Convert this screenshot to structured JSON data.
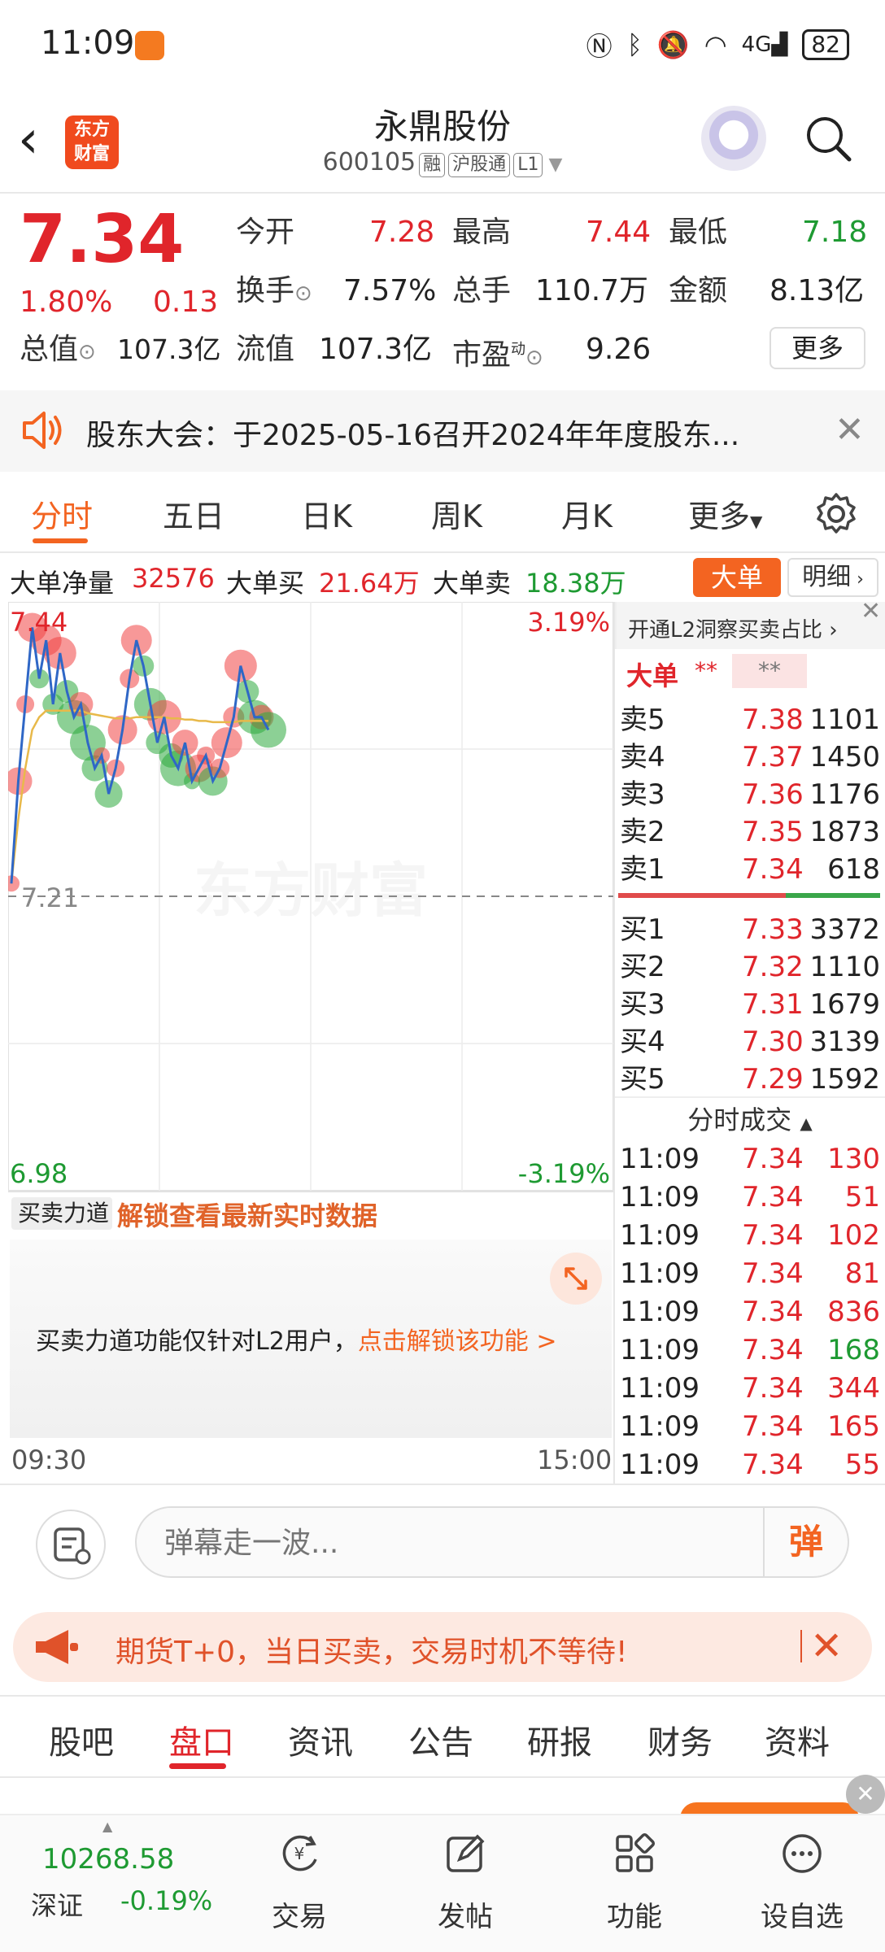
{
  "status_bar": {
    "time": "11:09",
    "signal": "4G",
    "battery": "82"
  },
  "header": {
    "back": "‹",
    "logo_line1": "东方",
    "logo_line2": "财富",
    "stock_name": "永鼎股份",
    "stock_code": "600105",
    "tags": [
      "融",
      "沪股通",
      "L1"
    ]
  },
  "quote": {
    "price": "7.34",
    "change_pct": "1.80%",
    "change": "0.13",
    "open_label": "今开",
    "open": "7.28",
    "high_label": "最高",
    "high": "7.44",
    "low_label": "最低",
    "low": "7.18",
    "turnover_label": "换手",
    "turnover": "7.57%",
    "volume_label": "总手",
    "volume": "110.7万",
    "amount_label": "金额",
    "amount": "8.13亿",
    "mktcap_label": "总值",
    "mktcap": "107.3亿",
    "float_label": "流值",
    "float": "107.3亿",
    "pe_label": "市盈",
    "pe_sup": "动",
    "pe": "9.26",
    "more": "更多"
  },
  "notice": {
    "text": "股东大会：于2025-05-16召开2024年年度股东..."
  },
  "chart_tabs": [
    "分时",
    "五日",
    "日K",
    "周K",
    "月K",
    "更多"
  ],
  "big_order": {
    "net_label": "大单净量",
    "net": "32576",
    "buy_label": "大单买",
    "buy": "21.64万",
    "sell_label": "大单卖",
    "sell": "18.38万",
    "btn_big": "大单",
    "btn_detail": "明细"
  },
  "chart_data": {
    "type": "line",
    "title": "",
    "y_labels": {
      "top": "7.44",
      "mid": "7.21",
      "bottom": "6.98",
      "top_pct": "3.19%",
      "bottom_pct": "-3.19%"
    },
    "ylim": [
      6.98,
      7.44
    ],
    "prev_close": 7.21,
    "x_labels": [
      "09:30",
      "15:00"
    ],
    "watermark": "东方财富",
    "price": [
      7.22,
      7.3,
      7.36,
      7.42,
      7.38,
      7.41,
      7.36,
      7.4,
      7.37,
      7.35,
      7.36,
      7.33,
      7.31,
      7.32,
      7.29,
      7.31,
      7.34,
      7.38,
      7.41,
      7.39,
      7.36,
      7.33,
      7.35,
      7.32,
      7.31,
      7.33,
      7.3,
      7.31,
      7.32,
      7.3,
      7.31,
      7.33,
      7.35,
      7.39,
      7.37,
      7.35,
      7.35,
      7.34
    ],
    "avg": [
      7.22,
      7.27,
      7.31,
      7.34,
      7.35,
      7.355,
      7.355,
      7.355,
      7.355,
      7.355,
      7.355,
      7.353,
      7.352,
      7.351,
      7.35,
      7.349,
      7.349,
      7.349,
      7.35,
      7.35,
      7.35,
      7.35,
      7.35,
      7.349,
      7.349,
      7.348,
      7.348,
      7.347,
      7.347,
      7.346,
      7.346,
      7.346,
      7.346,
      7.347,
      7.347,
      7.347,
      7.347,
      7.347
    ]
  },
  "l2_hint": "开通L2洞察买卖占比",
  "ob_head": {
    "label": "大单",
    "a": "**",
    "b": "**"
  },
  "asks": [
    {
      "label": "卖5",
      "price": "7.38",
      "vol": "1101"
    },
    {
      "label": "卖4",
      "price": "7.37",
      "vol": "1450"
    },
    {
      "label": "卖3",
      "price": "7.36",
      "vol": "1176"
    },
    {
      "label": "卖2",
      "price": "7.35",
      "vol": "1873"
    },
    {
      "label": "卖1",
      "price": "7.34",
      "vol": "618"
    }
  ],
  "bids": [
    {
      "label": "买1",
      "price": "7.33",
      "vol": "3372"
    },
    {
      "label": "买2",
      "price": "7.32",
      "vol": "1110"
    },
    {
      "label": "买3",
      "price": "7.31",
      "vol": "1679"
    },
    {
      "label": "买4",
      "price": "7.30",
      "vol": "3139"
    },
    {
      "label": "买5",
      "price": "7.29",
      "vol": "1592"
    }
  ],
  "ticks_title": "分时成交",
  "ticks": [
    {
      "time": "11:09",
      "price": "7.34",
      "vol": "130",
      "color": "red"
    },
    {
      "time": "11:09",
      "price": "7.34",
      "vol": "51",
      "color": "red"
    },
    {
      "time": "11:09",
      "price": "7.34",
      "vol": "102",
      "color": "red"
    },
    {
      "time": "11:09",
      "price": "7.34",
      "vol": "81",
      "color": "red"
    },
    {
      "time": "11:09",
      "price": "7.34",
      "vol": "836",
      "color": "red"
    },
    {
      "time": "11:09",
      "price": "7.34",
      "vol": "168",
      "color": "green"
    },
    {
      "time": "11:09",
      "price": "7.34",
      "vol": "344",
      "color": "red"
    },
    {
      "time": "11:09",
      "price": "7.34",
      "vol": "165",
      "color": "red"
    },
    {
      "time": "11:09",
      "price": "7.34",
      "vol": "55",
      "color": "red"
    }
  ],
  "strength": {
    "select": "买卖力道",
    "lock": "解锁查看最新实时数据",
    "msg": "买卖力道功能仅针对L2用户，",
    "msg_link": "点击解锁该功能 >"
  },
  "comment": {
    "placeholder": "弹幕走一波...",
    "danmu": "弹"
  },
  "ad": {
    "text": "期货T+0，当日买卖，交易时机不等待!"
  },
  "bottom_tabs": [
    "股吧",
    "盘口",
    "资讯",
    "公告",
    "研报",
    "财务",
    "资料"
  ],
  "bottom_nav": {
    "index_value": "10268.58",
    "index_name": "深证",
    "index_change": "-0.19%",
    "items": [
      "交易",
      "发帖",
      "功能",
      "设自选"
    ]
  }
}
